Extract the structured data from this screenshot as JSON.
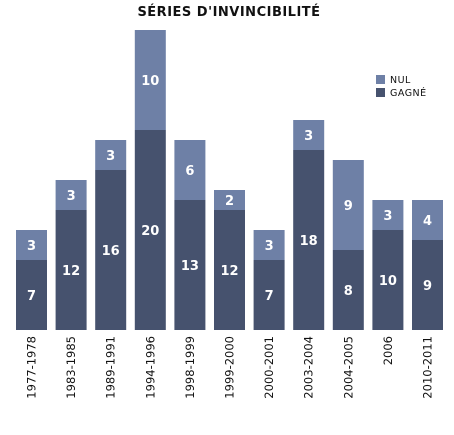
{
  "chart_data": {
    "type": "bar",
    "stacked": true,
    "title": "SÉRIES D'INVINCIBILITÉ",
    "categories": [
      "1977-1978",
      "1983-1985",
      "1989-1991",
      "1994-1996",
      "1998-1999",
      "1999-2000",
      "2000-2001",
      "2003-2004",
      "2004-2005",
      "2006",
      "2010-2011"
    ],
    "series": [
      {
        "name": "GAGNÉ",
        "values": [
          7,
          12,
          16,
          20,
          13,
          12,
          7,
          18,
          8,
          10,
          9
        ],
        "color": "#46526e"
      },
      {
        "name": "NUL",
        "values": [
          3,
          3,
          3,
          10,
          6,
          2,
          3,
          3,
          9,
          3,
          4
        ],
        "color": "#6e80a6"
      }
    ],
    "ylim": [
      0,
      30
    ],
    "grid": false,
    "legend": "top-right",
    "legend_entries": [
      "NUL",
      "GAGNÉ"
    ]
  }
}
